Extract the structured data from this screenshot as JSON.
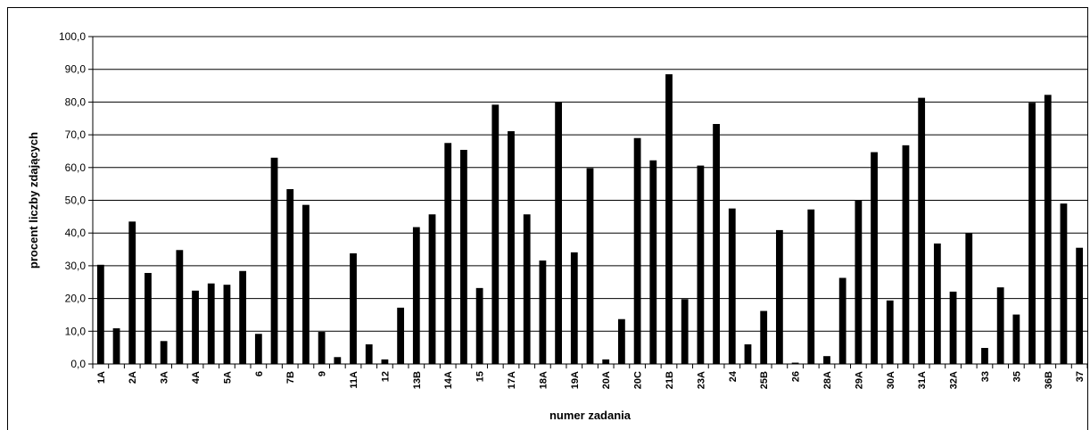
{
  "chart_data": {
    "type": "bar",
    "title": "",
    "xlabel": "numer zadania",
    "ylabel": "procent liczby zdających",
    "ylim": [
      0,
      100
    ],
    "yticks": [
      "0,0",
      "10,0",
      "20,0",
      "30,0",
      "40,0",
      "50,0",
      "60,0",
      "70,0",
      "80,0",
      "90,0",
      "100,0"
    ],
    "grid": true,
    "bar_color": "#000000",
    "categories": [
      "1A",
      "",
      "2A",
      "",
      "3A",
      "",
      "4A",
      "",
      "5A",
      "",
      "6",
      "",
      "7B",
      "",
      "9",
      "",
      "11A",
      "",
      "12",
      "",
      "13B",
      "",
      "14A",
      "",
      "15",
      "",
      "17A",
      "",
      "18A",
      "",
      "19A",
      "",
      "20A",
      "",
      "20C",
      "",
      "21B",
      "",
      "23A",
      "",
      "24",
      "",
      "25B",
      "",
      "26",
      "",
      "28A",
      "",
      "29A",
      "",
      "30A",
      "",
      "31A",
      "",
      "32A",
      "",
      "33",
      "",
      "35",
      "",
      "36B",
      "",
      "37"
    ],
    "values": [
      30.3,
      10.9,
      43.5,
      27.8,
      7.0,
      34.8,
      22.4,
      24.6,
      24.2,
      28.4,
      9.2,
      63.0,
      53.4,
      48.6,
      9.8,
      2.1,
      33.8,
      6.0,
      1.4,
      17.2,
      41.8,
      45.7,
      67.5,
      65.4,
      23.2,
      79.2,
      71.1,
      45.7,
      31.6,
      79.9,
      34.1,
      59.8,
      1.4,
      13.7,
      69.0,
      62.2,
      88.5,
      19.8,
      60.6,
      73.3,
      47.5,
      6.0,
      16.2,
      40.9,
      0.4,
      47.2,
      2.4,
      26.3,
      49.9,
      64.7,
      19.4,
      66.8,
      81.3,
      36.8,
      22.1,
      39.9,
      4.9,
      23.4,
      15.1,
      79.8,
      82.2,
      49.0,
      35.5
    ]
  }
}
